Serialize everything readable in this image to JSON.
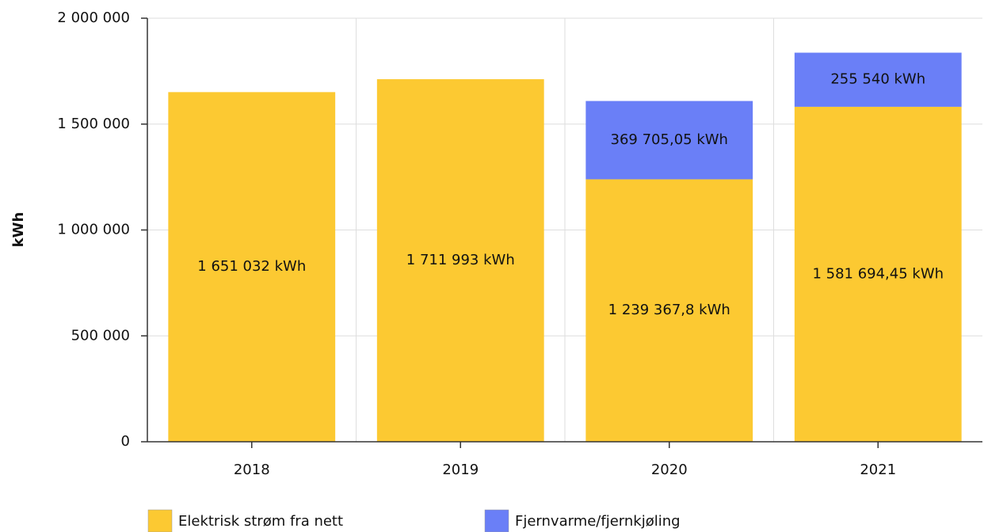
{
  "chart_data": {
    "type": "bar",
    "stacked": true,
    "y_label": "kWh",
    "categories": [
      "2018",
      "2019",
      "2020",
      "2021"
    ],
    "series": [
      {
        "name": "Elektrisk strøm fra nett",
        "color": "#fcc932",
        "values": [
          1651032,
          1711993,
          1239367.8,
          1581694.45
        ],
        "value_labels": [
          "1 651 032 kWh",
          "1 711 993 kWh",
          "1 239 367,8 kWh",
          "1 581 694,45 kWh"
        ]
      },
      {
        "name": "Fjernvarme/fjernkjøling",
        "color": "#6a7ff7",
        "values": [
          null,
          null,
          369705.05,
          255540
        ],
        "value_labels": [
          null,
          null,
          "369 705,05 kWh",
          "255 540 kWh"
        ]
      }
    ],
    "ylim": [
      0,
      2000000
    ],
    "yticks": [
      0,
      {
        "value": 500000,
        "label": "500 000"
      },
      {
        "value": 1000000,
        "label": "1 000 000"
      },
      {
        "value": 1500000,
        "label": "1 500 000"
      },
      {
        "value": 2000000,
        "label": "2 000 000"
      }
    ],
    "grid": true,
    "legend": "bottom"
  }
}
